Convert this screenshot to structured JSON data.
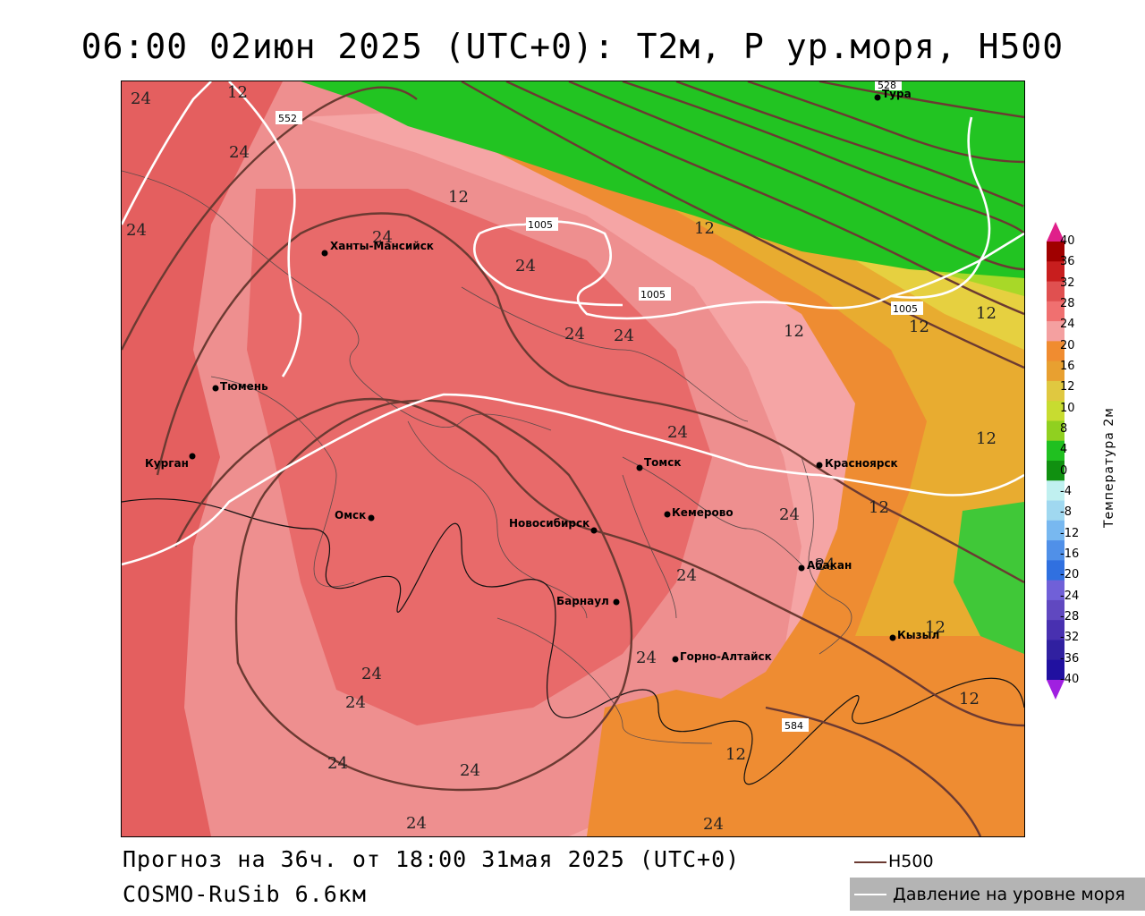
{
  "title": "06:00 02июн 2025 (UTC+0): T2м, P ур.моря, H500",
  "footer": {
    "forecast": "Прогноз на 36ч. от 18:00 31мая 2025 (UTC+0)",
    "model": "COSMO-RuSib 6.6км"
  },
  "legend": {
    "h500": "H500",
    "pressure": "Давление на уровне моря",
    "h500_color": "#6b3a32",
    "pressure_color": "#ffffff"
  },
  "colorbar": {
    "title": "Температура 2м",
    "labels": [
      "40",
      "36",
      "32",
      "28",
      "24",
      "20",
      "16",
      "12",
      "10",
      "8",
      "4",
      "0",
      "-4",
      "-8",
      "-12",
      "-16",
      "-20",
      "-24",
      "-28",
      "-32",
      "-36",
      "-40"
    ],
    "colors": [
      "#a00000",
      "#c81e1e",
      "#e05050",
      "#f07070",
      "#f4a0a0",
      "#f08c30",
      "#e8a030",
      "#e0c840",
      "#c8dc30",
      "#90d020",
      "#20c020",
      "#109010",
      "#c0f0f0",
      "#a0d8f0",
      "#78b8f0",
      "#5090e8",
      "#3070e0",
      "#7060d8",
      "#6048c0",
      "#4830b0",
      "#3020a0",
      "#2010a0"
    ]
  },
  "cities": [
    {
      "name": "Тура"
    },
    {
      "name": "Ханты-Мансийск"
    },
    {
      "name": "Тюмень"
    },
    {
      "name": "Курган"
    },
    {
      "name": "Омск"
    },
    {
      "name": "Новосибирск"
    },
    {
      "name": "Томск"
    },
    {
      "name": "Кемерово"
    },
    {
      "name": "Красноярск"
    },
    {
      "name": "Барнаул"
    },
    {
      "name": "Горно-Алтайск"
    },
    {
      "name": "Абакан"
    },
    {
      "name": "Кызыл"
    }
  ],
  "isobar_labels": [
    "1005",
    "1005",
    "1005"
  ],
  "h500_labels": [
    "552",
    "528",
    "584"
  ],
  "temp_labels": [
    "12",
    "24"
  ]
}
